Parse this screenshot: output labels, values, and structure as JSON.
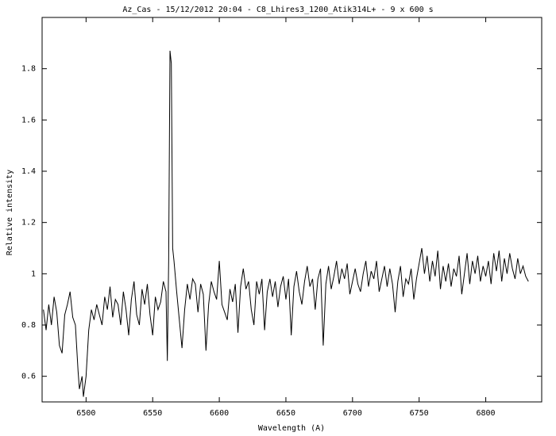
{
  "chart_data": {
    "type": "line",
    "title": "Az_Cas - 15/12/2012 20:04 - C8_Lhires3_1200_Atik314L+ - 9 x 600 s",
    "x_label": "Wavelength (A)",
    "y_label": "Relative intensity",
    "color": "#000000",
    "xlim": [
      6467,
      6842
    ],
    "xticks": [
      6500,
      6550,
      6600,
      6650,
      6700,
      6750,
      6800
    ],
    "ylim": [
      0.5,
      2.0
    ],
    "yticks": [
      0.6,
      0.8,
      1,
      1.2,
      1.4,
      1.6,
      1.8
    ],
    "x": [
      6468,
      6470,
      6472,
      6474,
      6476,
      6478,
      6480,
      6482,
      6484,
      6486,
      6488,
      6490,
      6492,
      6494,
      6495,
      6497,
      6498,
      6500,
      6502,
      6504,
      6506,
      6508,
      6510,
      6512,
      6514,
      6516,
      6518,
      6520,
      6522,
      6524,
      6526,
      6528,
      6530,
      6532,
      6534,
      6536,
      6538,
      6540,
      6542,
      6544,
      6546,
      6548,
      6550,
      6552,
      6554,
      6556,
      6558,
      6560,
      6561,
      6562,
      6563,
      6564,
      6565,
      6566,
      6568,
      6570,
      6572,
      6574,
      6576,
      6578,
      6580,
      6582,
      6584,
      6586,
      6588,
      6590,
      6592,
      6594,
      6596,
      6598,
      6600,
      6602,
      6604,
      6606,
      6608,
      6610,
      6612,
      6614,
      6616,
      6618,
      6620,
      6622,
      6624,
      6626,
      6628,
      6630,
      6632,
      6634,
      6636,
      6638,
      6640,
      6642,
      6644,
      6646,
      6648,
      6650,
      6652,
      6654,
      6656,
      6658,
      6660,
      6662,
      6664,
      6666,
      6668,
      6670,
      6672,
      6674,
      6676,
      6678,
      6680,
      6682,
      6684,
      6686,
      6688,
      6690,
      6692,
      6694,
      6696,
      6698,
      6700,
      6702,
      6704,
      6706,
      6708,
      6710,
      6712,
      6714,
      6716,
      6718,
      6720,
      6722,
      6724,
      6726,
      6728,
      6730,
      6732,
      6734,
      6736,
      6738,
      6740,
      6742,
      6744,
      6746,
      6748,
      6750,
      6752,
      6754,
      6756,
      6758,
      6760,
      6762,
      6764,
      6766,
      6768,
      6770,
      6772,
      6774,
      6776,
      6778,
      6780,
      6782,
      6784,
      6786,
      6788,
      6790,
      6792,
      6794,
      6796,
      6798,
      6800,
      6802,
      6804,
      6806,
      6808,
      6810,
      6812,
      6814,
      6816,
      6818,
      6820,
      6822,
      6824,
      6826,
      6828,
      6830,
      6832
    ],
    "values": [
      0.86,
      0.78,
      0.88,
      0.8,
      0.91,
      0.85,
      0.72,
      0.69,
      0.84,
      0.88,
      0.93,
      0.83,
      0.8,
      0.62,
      0.55,
      0.6,
      0.52,
      0.6,
      0.78,
      0.86,
      0.82,
      0.88,
      0.84,
      0.8,
      0.91,
      0.86,
      0.95,
      0.83,
      0.9,
      0.88,
      0.8,
      0.93,
      0.86,
      0.76,
      0.9,
      0.97,
      0.84,
      0.8,
      0.94,
      0.88,
      0.96,
      0.84,
      0.76,
      0.91,
      0.86,
      0.89,
      0.97,
      0.93,
      0.66,
      1.05,
      1.87,
      1.82,
      1.1,
      1.05,
      0.93,
      0.82,
      0.71,
      0.86,
      0.96,
      0.9,
      0.98,
      0.96,
      0.85,
      0.96,
      0.92,
      0.7,
      0.88,
      0.97,
      0.93,
      0.9,
      1.05,
      0.88,
      0.85,
      0.82,
      0.94,
      0.89,
      0.96,
      0.77,
      0.95,
      1.02,
      0.94,
      0.97,
      0.86,
      0.8,
      0.97,
      0.92,
      0.98,
      0.78,
      0.93,
      0.98,
      0.91,
      0.97,
      0.87,
      0.95,
      0.99,
      0.9,
      0.98,
      0.76,
      0.95,
      1.01,
      0.93,
      0.88,
      0.97,
      1.03,
      0.95,
      0.98,
      0.86,
      0.98,
      1.02,
      0.72,
      0.96,
      1.03,
      0.94,
      0.99,
      1.05,
      0.96,
      1.02,
      0.98,
      1.04,
      0.92,
      0.97,
      1.02,
      0.96,
      0.93,
      1.0,
      1.05,
      0.95,
      1.01,
      0.98,
      1.05,
      0.93,
      0.98,
      1.03,
      0.95,
      1.02,
      0.96,
      0.85,
      0.97,
      1.03,
      0.91,
      0.98,
      0.96,
      1.02,
      0.9,
      0.98,
      1.04,
      1.1,
      1.0,
      1.07,
      0.97,
      1.05,
      0.99,
      1.09,
      0.94,
      1.03,
      0.97,
      1.04,
      0.95,
      1.02,
      0.99,
      1.07,
      0.92,
      1.0,
      1.08,
      0.96,
      1.05,
      1.0,
      1.07,
      0.97,
      1.03,
      0.99,
      1.05,
      0.96,
      1.08,
      1.01,
      1.09,
      0.97,
      1.06,
      1.0,
      1.08,
      1.02,
      0.98,
      1.06,
      1.0,
      1.03,
      0.99,
      0.97
    ]
  }
}
